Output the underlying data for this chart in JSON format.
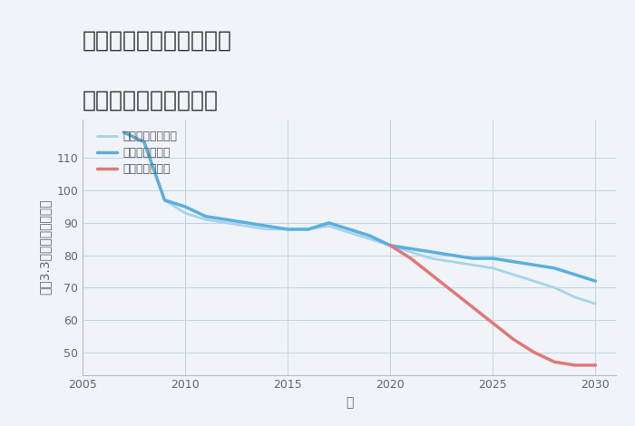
{
  "title": "大阪府枚方市小倉東町の\n中古戸建ての価格推移",
  "xlabel": "年",
  "ylabel": "坪（3.3㎡）単価（万円）",
  "background_color": "#f0f4f8",
  "plot_bg_color": "#f0f4f8",
  "grid_color": "#c5d5e5",
  "ylim": [
    43,
    122
  ],
  "xlim": [
    2005,
    2031
  ],
  "yticks": [
    50,
    60,
    70,
    80,
    90,
    100,
    110
  ],
  "xticks": [
    2005,
    2010,
    2015,
    2020,
    2025,
    2030
  ],
  "good_scenario": {
    "label": "グッドシナリオ",
    "color": "#5aafe0",
    "linewidth": 2.5,
    "x": [
      2007,
      2008,
      2009,
      2010,
      2011,
      2012,
      2013,
      2014,
      2015,
      2016,
      2017,
      2018,
      2019,
      2020,
      2021,
      2022,
      2023,
      2024,
      2025,
      2026,
      2027,
      2028,
      2029,
      2030
    ],
    "y": [
      118,
      115,
      97,
      95,
      92,
      91,
      90,
      89,
      88,
      88,
      90,
      88,
      86,
      83,
      82,
      81,
      80,
      79,
      79,
      78,
      77,
      76,
      74,
      72
    ]
  },
  "bad_scenario": {
    "label": "バッドシナリオ",
    "color": "#e07878",
    "linewidth": 2.5,
    "x": [
      2020,
      2021,
      2022,
      2023,
      2024,
      2025,
      2026,
      2027,
      2028,
      2029,
      2030
    ],
    "y": [
      83,
      79,
      74,
      69,
      64,
      59,
      54,
      50,
      47,
      46,
      46
    ]
  },
  "normal_scenario": {
    "label": "ノーマルシナリオ",
    "color": "#a8d4e8",
    "linewidth": 2.0,
    "x": [
      2007,
      2008,
      2009,
      2010,
      2011,
      2012,
      2013,
      2014,
      2015,
      2016,
      2017,
      2018,
      2019,
      2020,
      2021,
      2022,
      2023,
      2024,
      2025,
      2026,
      2027,
      2028,
      2029,
      2030
    ],
    "y": [
      118,
      115,
      97,
      93,
      91,
      90,
      89,
      88,
      88,
      88,
      89,
      87,
      85,
      83,
      81,
      79,
      78,
      77,
      76,
      74,
      72,
      70,
      67,
      65
    ]
  },
  "title_fontsize": 18,
  "axis_label_fontsize": 10,
  "tick_fontsize": 9,
  "legend_fontsize": 9
}
